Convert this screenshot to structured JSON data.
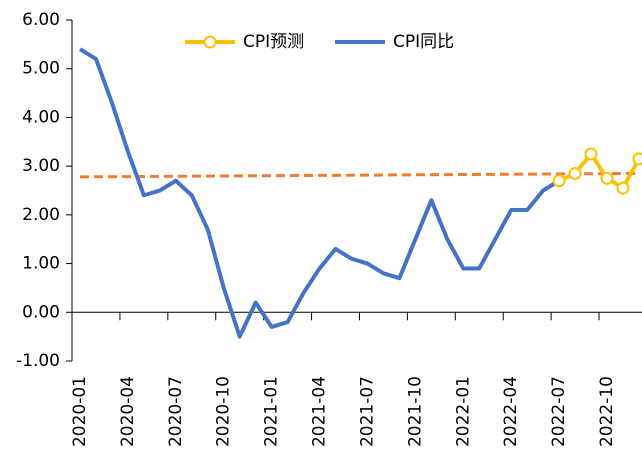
{
  "chart_data": {
    "type": "line",
    "categories": [
      "2020-01",
      null,
      null,
      "2020-04",
      null,
      null,
      "2020-07",
      null,
      null,
      "2020-10",
      null,
      null,
      "2021-01",
      null,
      null,
      "2021-04",
      null,
      null,
      "2021-07",
      null,
      null,
      "2021-10",
      null,
      null,
      "2022-01",
      null,
      null,
      "2022-04",
      null,
      null,
      "2022-07",
      null,
      null,
      "2022-10",
      null,
      null
    ],
    "series": [
      {
        "name": "CPI预测",
        "color": "#ffc000",
        "marker": "circle",
        "values": [
          null,
          null,
          null,
          null,
          null,
          null,
          null,
          null,
          null,
          null,
          null,
          null,
          null,
          null,
          null,
          null,
          null,
          null,
          null,
          null,
          null,
          null,
          null,
          null,
          null,
          null,
          null,
          null,
          null,
          null,
          2.7,
          2.85,
          3.25,
          2.75,
          2.55,
          3.15
        ]
      },
      {
        "name": "CPI同比",
        "color": "#4472c4",
        "values": [
          5.4,
          5.2,
          4.3,
          3.3,
          2.4,
          2.5,
          2.7,
          2.4,
          1.7,
          0.5,
          -0.5,
          0.2,
          -0.3,
          -0.2,
          0.4,
          0.9,
          1.3,
          1.1,
          1.0,
          0.8,
          0.7,
          1.5,
          2.3,
          1.5,
          0.9,
          0.9,
          1.5,
          2.1,
          2.1,
          2.5,
          2.7,
          null,
          null,
          null,
          null,
          null
        ]
      }
    ],
    "trendline": {
      "color": "#ed7d31",
      "dashed": true,
      "values": [
        2.78,
        2.85
      ]
    },
    "ylim": [
      -1,
      6
    ],
    "yticks": [
      {
        "value": -1,
        "label": "-1.00"
      },
      {
        "value": 0,
        "label": "0.00"
      },
      {
        "value": 1,
        "label": "1.00"
      },
      {
        "value": 2,
        "label": "2.00"
      },
      {
        "value": 3,
        "label": "3.00"
      },
      {
        "value": 4,
        "label": "4.00"
      },
      {
        "value": 5,
        "label": "5.00"
      },
      {
        "value": 6,
        "label": "6.00"
      }
    ],
    "legend": "top"
  }
}
